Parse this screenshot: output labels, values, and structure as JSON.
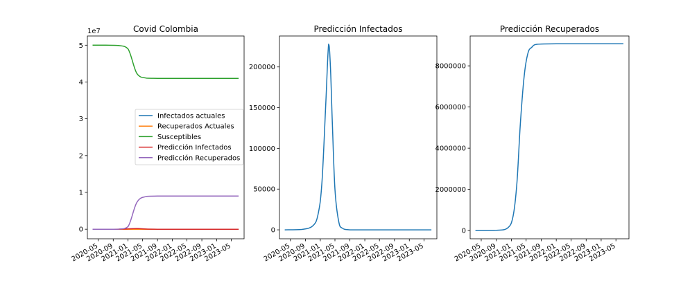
{
  "chart_data": [
    {
      "type": "line",
      "title": "Covid Colombia",
      "xlabel": "",
      "ylabel": "",
      "y_offset_label": "1e7",
      "ylim": [
        -2600000,
        52500000
      ],
      "y_ticks": [
        0,
        10000000,
        20000000,
        30000000,
        40000000,
        50000000
      ],
      "y_tick_labels": [
        "0",
        "1",
        "2",
        "3",
        "4",
        "5"
      ],
      "x_ticks": [
        "2020-05",
        "2020-09",
        "2021-01",
        "2021-05",
        "2021-09",
        "2022-01",
        "2022-05",
        "2022-09",
        "2023-01",
        "2023-05"
      ],
      "legend_loc": "center-right",
      "x": [
        "2020-03-15",
        "2020-07-01",
        "2020-10-15",
        "2021-01-01",
        "2021-03-15",
        "2021-06-01",
        "2021-09-01",
        "2022-01-01",
        "2022-06-01",
        "2023-01-01",
        "2023-07-01"
      ],
      "series": [
        {
          "name": "Infectados actuales",
          "color": "#1f77b4",
          "values": [
            0,
            0,
            0,
            0,
            0,
            0,
            0,
            0,
            0,
            0,
            0
          ]
        },
        {
          "name": "Recuperados Actuales",
          "color": "#ff7f0e",
          "values": [
            0,
            0,
            0,
            0,
            0,
            0,
            0,
            0,
            0,
            0,
            0
          ]
        },
        {
          "name": "Susceptibles",
          "color": "#2ca02c",
          "values": [
            50000000,
            50000000,
            49900000,
            49000000,
            42300000,
            41050000,
            41000000,
            41000000,
            41000000,
            41000000,
            41000000
          ]
        },
        {
          "name": "Predicción Infectados",
          "color": "#d62728",
          "values": [
            0,
            0,
            10000,
            100000,
            200000,
            50000,
            0,
            0,
            0,
            0,
            0
          ]
        },
        {
          "name": "Predicción Recuperados",
          "color": "#9467bd",
          "values": [
            0,
            0,
            20000,
            700000,
            7300000,
            8900000,
            9000000,
            9000000,
            9000000,
            9000000,
            9000000
          ]
        }
      ]
    },
    {
      "type": "line",
      "title": "Predicción Infectados",
      "xlabel": "",
      "ylabel": "",
      "ylim": [
        -11000,
        238000
      ],
      "y_ticks": [
        0,
        50000,
        100000,
        150000,
        200000
      ],
      "y_tick_labels": [
        "0",
        "50000",
        "100000",
        "150000",
        "200000"
      ],
      "x_ticks": [
        "2020-05",
        "2020-09",
        "2021-01",
        "2021-05",
        "2021-09",
        "2022-01",
        "2022-05",
        "2022-09",
        "2023-01",
        "2023-05"
      ],
      "x": [
        "2020-03-15",
        "2020-08-01",
        "2020-11-01",
        "2020-12-15",
        "2021-01-15",
        "2021-02-15",
        "2021-03-10",
        "2021-03-25",
        "2021-04-10",
        "2021-05-01",
        "2021-06-01",
        "2021-07-01",
        "2021-09-01",
        "2022-01-01",
        "2023-07-01"
      ],
      "series": [
        {
          "name": "",
          "color": "#1f77b4",
          "values": [
            0,
            500,
            5000,
            20000,
            60000,
            155000,
            228000,
            200000,
            130000,
            50000,
            10000,
            2000,
            0,
            0,
            0
          ]
        }
      ]
    },
    {
      "type": "line",
      "title": "Predicción Recuperados",
      "xlabel": "",
      "ylabel": "",
      "ylim": [
        -400000,
        9450000
      ],
      "y_ticks": [
        0,
        2000000,
        4000000,
        6000000,
        8000000
      ],
      "y_tick_labels": [
        "0",
        "2000000",
        "4000000",
        "6000000",
        "8000000"
      ],
      "x_ticks": [
        "2020-05",
        "2020-09",
        "2021-01",
        "2021-05",
        "2021-09",
        "2022-01",
        "2022-05",
        "2022-09",
        "2023-01",
        "2023-05"
      ],
      "x": [
        "2020-03-15",
        "2020-09-01",
        "2020-12-01",
        "2021-01-15",
        "2021-02-15",
        "2021-03-15",
        "2021-04-15",
        "2021-05-15",
        "2021-06-15",
        "2021-08-01",
        "2022-01-01",
        "2023-07-01"
      ],
      "series": [
        {
          "name": "",
          "color": "#1f77b4",
          "values": [
            0,
            10000,
            120000,
            700000,
            2300000,
            5200000,
            7500000,
            8600000,
            8900000,
            9050000,
            9070000,
            9070000
          ]
        }
      ]
    }
  ]
}
